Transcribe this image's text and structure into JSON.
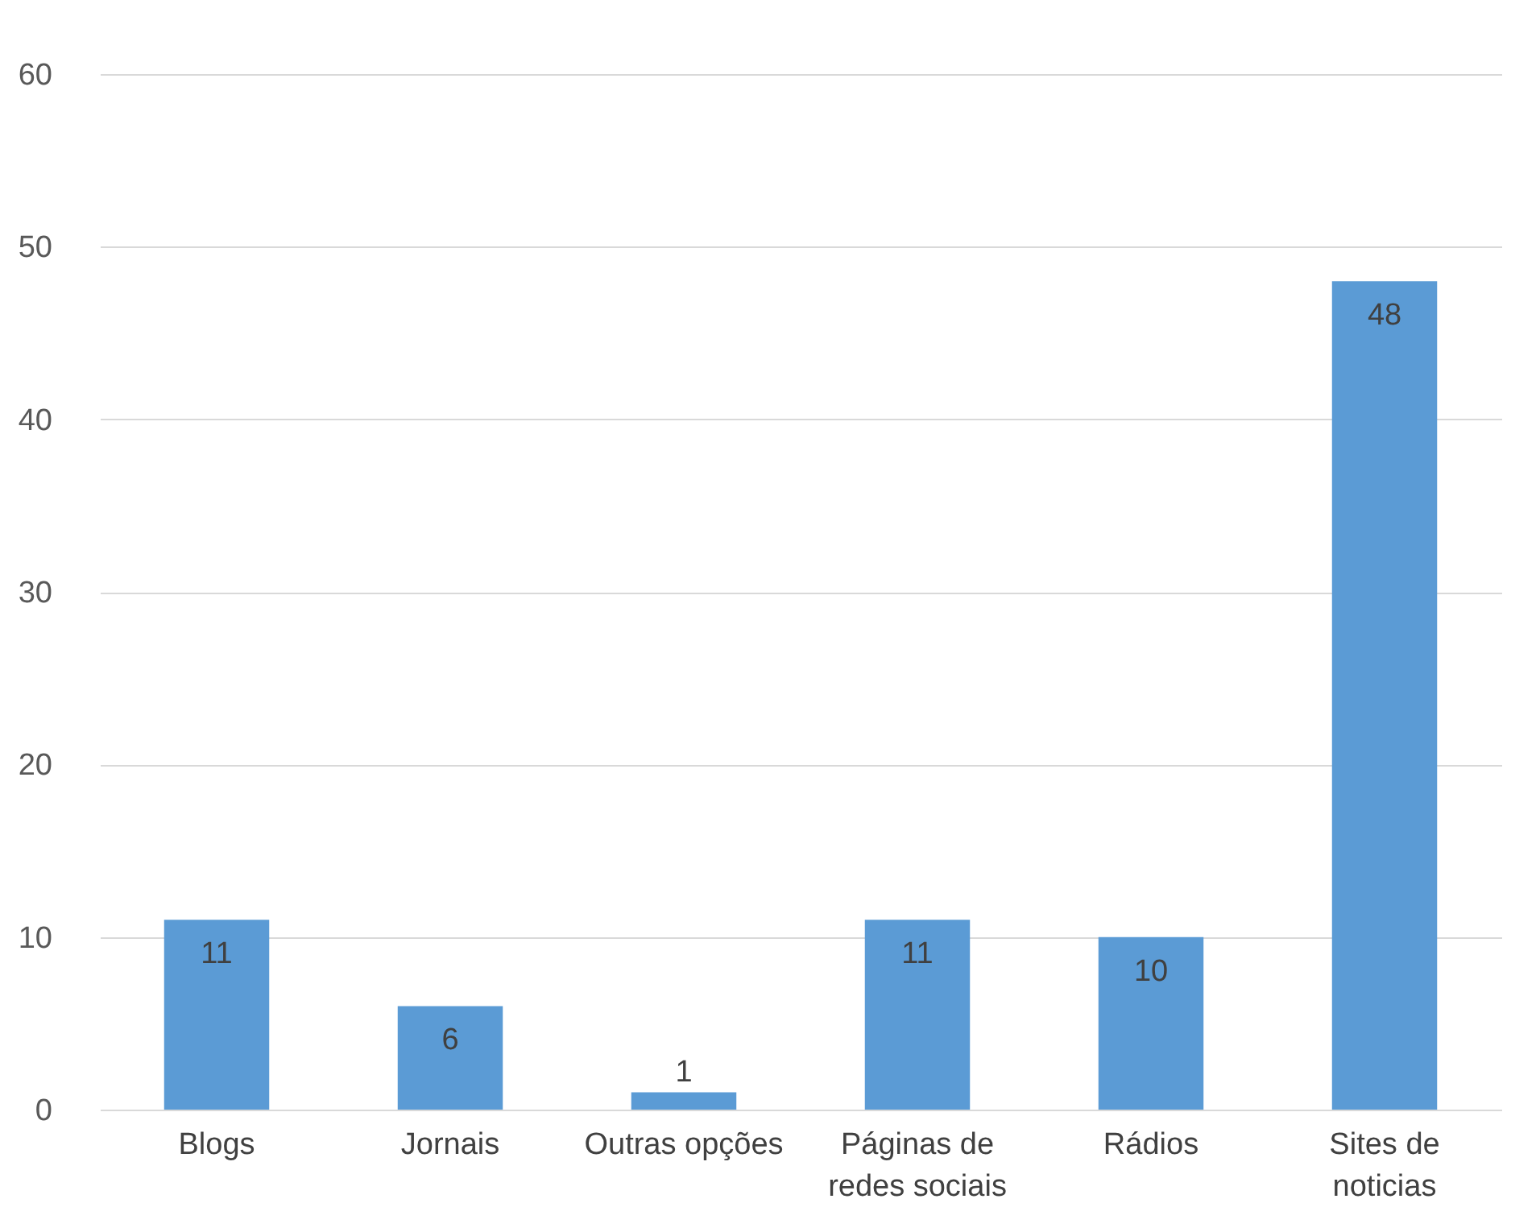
{
  "chart_data": {
    "type": "bar",
    "categories": [
      "Blogs",
      "Jornais",
      "Outras opções",
      "Páginas de redes sociais",
      "Rádios",
      "Sites de noticias"
    ],
    "values": [
      11,
      6,
      1,
      11,
      10,
      48
    ],
    "color": "#5b9bd5",
    "ylim": [
      0,
      60
    ],
    "yticks": [
      0,
      10,
      20,
      30,
      40,
      50,
      60
    ],
    "grid": "y",
    "data_labels": true
  }
}
